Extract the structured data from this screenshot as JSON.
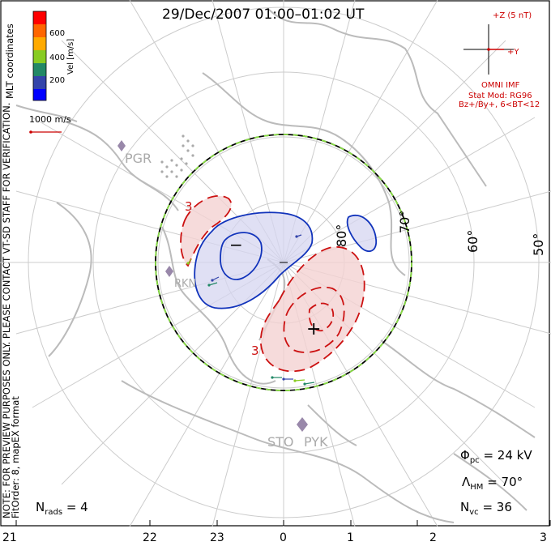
{
  "title": "29/Dec/2007 01:00–01:02 UT",
  "side_note_1": "NOTE: FOR PREVIEW PURPOSES ONLY. PLEASE CONTACT VT-SD STAFF FOR VERIFICATION.",
  "side_note_2": "FitOrder: 8, mapEX format",
  "coords_label": "MLT coordinates",
  "colorbar": {
    "label": "Vel [m/s]",
    "ticks": [
      "600",
      "400",
      "200"
    ],
    "colors": [
      "#ff0000",
      "#ff6600",
      "#ffaa00",
      "#88cc22",
      "#228866",
      "#3344aa",
      "#0000ff"
    ]
  },
  "vector_scale": "1000 m/s",
  "imf": {
    "z_label": "+Z (5 nT)",
    "y_label": "+Y",
    "source": "OMNI IMF",
    "stat_mod": "Stat Mod: RG96",
    "condition": "Bz+/By+, 6<BT<12"
  },
  "radars": [
    "PGR",
    "RKN",
    "STO",
    "PYK"
  ],
  "lat_labels": [
    "70°",
    "60°",
    "50°",
    "80°"
  ],
  "contour_symbols": {
    "minus": "−",
    "plus": "+",
    "left_mark": "3",
    "bottom_mark": "3"
  },
  "stats": {
    "phi_sym": "Φ",
    "phi_sub": "pc",
    "phi_val": "= 24 kV",
    "lam_sym": "Λ",
    "lam_sub": "HM",
    "lam_val": "= 70°",
    "nvc_sym": "N",
    "nvc_sub": "vc",
    "nvc_val": "= 36",
    "nrads_sym": "N",
    "nrads_sub": "rads",
    "nrads_val": "= 4"
  },
  "mlt_ticks": [
    "21",
    "22",
    "23",
    "0",
    "1",
    "2",
    "3"
  ]
}
